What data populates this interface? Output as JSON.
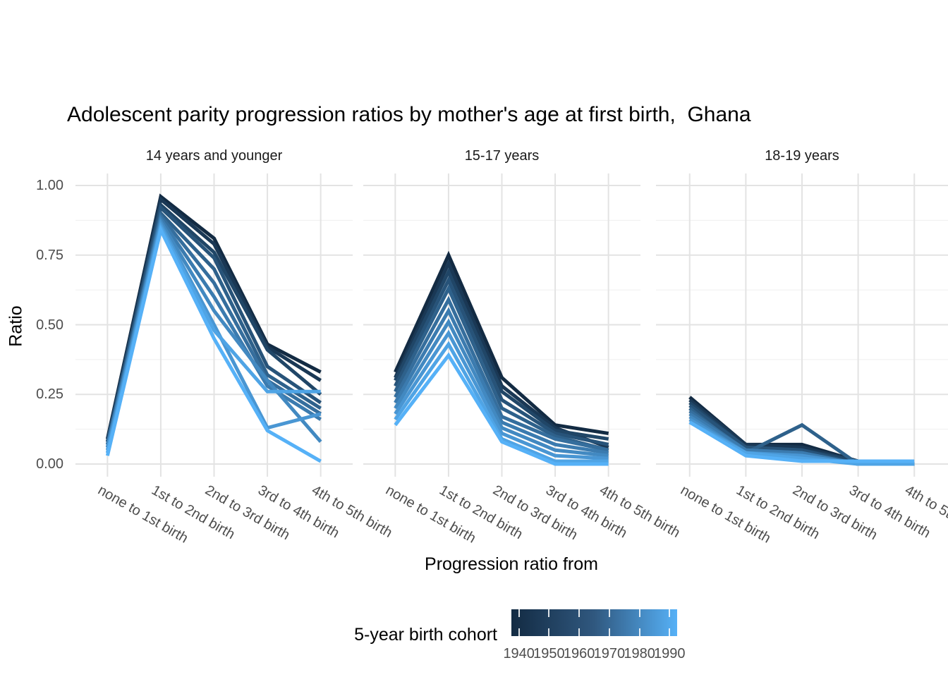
{
  "title": "Adolescent parity progression ratios by mother's age at first birth,  Ghana",
  "chart_data": {
    "type": "line",
    "xlabel": "Progression ratio from",
    "ylabel": "Ratio",
    "ylim": [
      0,
      1
    ],
    "yticks": [
      "1.00",
      "0.75",
      "0.50",
      "0.25",
      "0.00"
    ],
    "grid": "major and minor, light grey on white (theme_minimal)",
    "categories": [
      "none to 1st birth",
      "1st to 2nd birth",
      "2nd to 3rd birth",
      "3rd to 4th birth",
      "4th to 5th birth"
    ],
    "cohorts": [
      1940,
      1945,
      1950,
      1955,
      1960,
      1965,
      1970,
      1975,
      1980,
      1985,
      1990
    ],
    "cohort_colors": [
      "#132B43",
      "#1A3855",
      "#204667",
      "#275379",
      "#2E618B",
      "#356E9D",
      "#3B7BAF",
      "#4289C1",
      "#4996D3",
      "#4FA4E5",
      "#56B1F7"
    ],
    "facets": [
      {
        "label": "14 years and younger",
        "series": [
          [
            0.09,
            0.96,
            0.81,
            0.43,
            0.33
          ],
          [
            0.08,
            0.95,
            0.79,
            0.42,
            0.3
          ],
          [
            0.08,
            0.93,
            0.76,
            0.41,
            0.25
          ],
          [
            0.08,
            0.92,
            0.74,
            0.35,
            0.22
          ],
          [
            0.07,
            0.9,
            0.7,
            0.32,
            0.2
          ],
          [
            0.07,
            0.89,
            0.65,
            0.3,
            0.18
          ],
          [
            0.06,
            0.88,
            0.6,
            0.28,
            0.16
          ],
          [
            0.06,
            0.87,
            0.55,
            0.3,
            0.08
          ],
          [
            0.05,
            0.86,
            0.5,
            0.13,
            0.18
          ],
          [
            0.04,
            0.85,
            0.48,
            0.26,
            0.26
          ],
          [
            0.03,
            0.84,
            0.45,
            0.12,
            0.01
          ]
        ]
      },
      {
        "label": "15-17 years",
        "series": [
          [
            0.33,
            0.75,
            0.31,
            0.14,
            0.11
          ],
          [
            0.31,
            0.72,
            0.28,
            0.13,
            0.06
          ],
          [
            0.3,
            0.69,
            0.26,
            0.12,
            0.09
          ],
          [
            0.28,
            0.66,
            0.23,
            0.11,
            0.07
          ],
          [
            0.26,
            0.63,
            0.2,
            0.1,
            0.05
          ],
          [
            0.24,
            0.59,
            0.17,
            0.09,
            0.05
          ],
          [
            0.22,
            0.55,
            0.15,
            0.07,
            0.04
          ],
          [
            0.2,
            0.51,
            0.13,
            0.05,
            0.03
          ],
          [
            0.18,
            0.47,
            0.11,
            0.03,
            0.02
          ],
          [
            0.16,
            0.43,
            0.09,
            0.01,
            0.01
          ],
          [
            0.14,
            0.39,
            0.08,
            0.0,
            0.0
          ]
        ]
      },
      {
        "label": "18-19 years",
        "series": [
          [
            0.24,
            0.07,
            0.07,
            0.01,
            0.0
          ],
          [
            0.23,
            0.07,
            0.06,
            0.01,
            0.0
          ],
          [
            0.22,
            0.06,
            0.05,
            0.01,
            0.0
          ],
          [
            0.21,
            0.06,
            0.05,
            0.0,
            0.0
          ],
          [
            0.2,
            0.04,
            0.14,
            0.0,
            0.0
          ],
          [
            0.19,
            0.05,
            0.04,
            0.0,
            0.0
          ],
          [
            0.18,
            0.05,
            0.04,
            0.0,
            0.0
          ],
          [
            0.17,
            0.04,
            0.03,
            0.0,
            0.0
          ],
          [
            0.16,
            0.04,
            0.03,
            0.0,
            0.0
          ],
          [
            0.15,
            0.04,
            0.02,
            0.0,
            0.0
          ],
          [
            0.15,
            0.03,
            0.01,
            0.01,
            0.01
          ]
        ]
      }
    ],
    "legend": {
      "title": "5-year birth cohort",
      "position": "bottom colorbar",
      "ticks": [
        "1940",
        "1950",
        "1960",
        "1970",
        "1980",
        "1990"
      ],
      "color_low": "#132B43",
      "color_mid": "#30587F",
      "color_high": "#56B1F7"
    }
  }
}
